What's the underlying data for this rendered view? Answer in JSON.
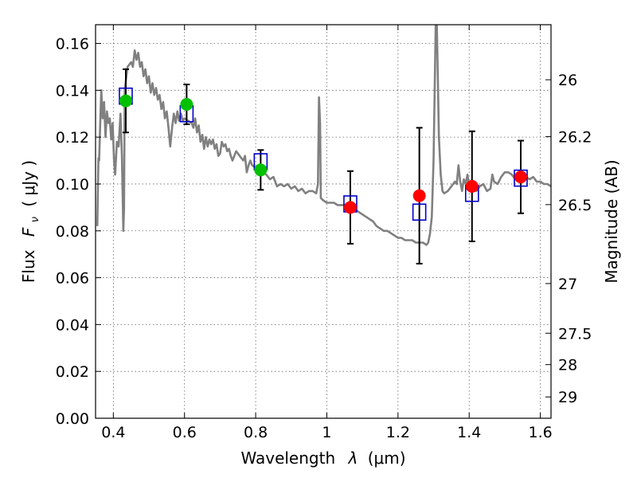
{
  "chart_data": {
    "type": "scatter",
    "xlabel_text": "Wavelength",
    "xlabel_symbol": "λ",
    "xlabel_unit": "(μm)",
    "ylabel_text": "Flux",
    "ylabel_symbol": "F",
    "ylabel_subscript": "ν",
    "ylabel_unit": "( μJy )",
    "y2label": "Magnitude (AB)",
    "xlim": [
      0.35,
      1.63
    ],
    "ylim": [
      0.0,
      0.168
    ],
    "x_ticks": [
      0.4,
      0.6,
      0.8,
      1.0,
      1.2,
      1.4,
      1.6
    ],
    "x_tick_labels": [
      "0.4",
      "0.6",
      "0.8",
      "1",
      "1.2",
      "1.4",
      "1.6"
    ],
    "y_ticks": [
      0.0,
      0.02,
      0.04,
      0.06,
      0.08,
      0.1,
      0.12,
      0.14,
      0.16
    ],
    "y_tick_labels": [
      "0.00",
      "0.02",
      "0.04",
      "0.06",
      "0.08",
      "0.10",
      "0.12",
      "0.14",
      "0.16"
    ],
    "y2_ticks": [
      {
        "label": "26",
        "flux": 0.1445
      },
      {
        "label": "26.2",
        "flux": 0.1202
      },
      {
        "label": "26.5",
        "flux": 0.0912
      },
      {
        "label": "27",
        "flux": 0.0575
      },
      {
        "label": "27.5",
        "flux": 0.0363
      },
      {
        "label": "28",
        "flux": 0.0229
      },
      {
        "label": "29",
        "flux": 0.0091
      }
    ],
    "grid": true,
    "colors": {
      "model": "#808080",
      "green": "#00c000",
      "red": "#ff0000",
      "box": "#0000cc",
      "errorbar": "#000000"
    },
    "series": [
      {
        "marker": "circle-green",
        "points": [
          {
            "x": 0.435,
            "y": 0.1355,
            "err": 0.0135
          },
          {
            "x": 0.606,
            "y": 0.134,
            "err": 0.0085
          },
          {
            "x": 0.814,
            "y": 0.106,
            "err": 0.0085
          }
        ]
      },
      {
        "marker": "circle-red",
        "points": [
          {
            "x": 1.066,
            "y": 0.09,
            "err": 0.0155
          },
          {
            "x": 1.26,
            "y": 0.095,
            "err": 0.029
          },
          {
            "x": 1.408,
            "y": 0.099,
            "err": 0.0235
          },
          {
            "x": 1.545,
            "y": 0.103,
            "err": 0.0155
          }
        ]
      },
      {
        "marker": "square-blue",
        "points": [
          {
            "x": 0.435,
            "y": 0.1375
          },
          {
            "x": 0.606,
            "y": 0.13
          },
          {
            "x": 0.814,
            "y": 0.1095
          },
          {
            "x": 1.066,
            "y": 0.0915
          },
          {
            "x": 1.26,
            "y": 0.088
          },
          {
            "x": 1.408,
            "y": 0.096
          },
          {
            "x": 1.545,
            "y": 0.1025
          }
        ]
      },
      {
        "marker": "line-gray",
        "points": [
          [
            0.355,
            0.082
          ],
          [
            0.358,
            0.111
          ],
          [
            0.36,
            0.11
          ],
          [
            0.363,
            0.125
          ],
          [
            0.366,
            0.14
          ],
          [
            0.37,
            0.128
          ],
          [
            0.374,
            0.135
          ],
          [
            0.378,
            0.12
          ],
          [
            0.382,
            0.131
          ],
          [
            0.386,
            0.126
          ],
          [
            0.39,
            0.128
          ],
          [
            0.394,
            0.119
          ],
          [
            0.398,
            0.126
          ],
          [
            0.402,
            0.11
          ],
          [
            0.405,
            0.104
          ],
          [
            0.41,
            0.118
          ],
          [
            0.415,
            0.116
          ],
          [
            0.42,
            0.13
          ],
          [
            0.424,
            0.112
          ],
          [
            0.428,
            0.08
          ],
          [
            0.43,
            0.09
          ],
          [
            0.432,
            0.14
          ],
          [
            0.44,
            0.15
          ],
          [
            0.45,
            0.152
          ],
          [
            0.455,
            0.15
          ],
          [
            0.46,
            0.157
          ],
          [
            0.465,
            0.153
          ],
          [
            0.47,
            0.156
          ],
          [
            0.475,
            0.15
          ],
          [
            0.48,
            0.152
          ],
          [
            0.485,
            0.146
          ],
          [
            0.49,
            0.149
          ],
          [
            0.495,
            0.143
          ],
          [
            0.5,
            0.146
          ],
          [
            0.505,
            0.139
          ],
          [
            0.51,
            0.143
          ],
          [
            0.515,
            0.138
          ],
          [
            0.52,
            0.141
          ],
          [
            0.525,
            0.136
          ],
          [
            0.53,
            0.138
          ],
          [
            0.535,
            0.132
          ],
          [
            0.54,
            0.135
          ],
          [
            0.545,
            0.128
          ],
          [
            0.55,
            0.131
          ],
          [
            0.555,
            0.124
          ],
          [
            0.56,
            0.116
          ],
          [
            0.565,
            0.124
          ],
          [
            0.57,
            0.13
          ],
          [
            0.575,
            0.126
          ],
          [
            0.58,
            0.131
          ],
          [
            0.585,
            0.127
          ],
          [
            0.59,
            0.13
          ],
          [
            0.595,
            0.127
          ],
          [
            0.6,
            0.128
          ],
          [
            0.61,
            0.127
          ],
          [
            0.62,
            0.126
          ],
          [
            0.625,
            0.124
          ],
          [
            0.63,
            0.128
          ],
          [
            0.635,
            0.122
          ],
          [
            0.64,
            0.125
          ],
          [
            0.645,
            0.118
          ],
          [
            0.65,
            0.121
          ],
          [
            0.655,
            0.115
          ],
          [
            0.66,
            0.12
          ],
          [
            0.665,
            0.116
          ],
          [
            0.67,
            0.119
          ],
          [
            0.675,
            0.117
          ],
          [
            0.68,
            0.119
          ],
          [
            0.685,
            0.115
          ],
          [
            0.69,
            0.117
          ],
          [
            0.695,
            0.112
          ],
          [
            0.7,
            0.113
          ],
          [
            0.705,
            0.118
          ],
          [
            0.71,
            0.116
          ],
          [
            0.715,
            0.117
          ],
          [
            0.72,
            0.114
          ],
          [
            0.725,
            0.115
          ],
          [
            0.73,
            0.112
          ],
          [
            0.735,
            0.11
          ],
          [
            0.74,
            0.112
          ],
          [
            0.745,
            0.114
          ],
          [
            0.75,
            0.113
          ],
          [
            0.755,
            0.112
          ],
          [
            0.76,
            0.111
          ],
          [
            0.765,
            0.11
          ],
          [
            0.77,
            0.112
          ],
          [
            0.775,
            0.105
          ],
          [
            0.78,
            0.108
          ],
          [
            0.785,
            0.11
          ],
          [
            0.79,
            0.108
          ],
          [
            0.8,
            0.107
          ],
          [
            0.81,
            0.107
          ],
          [
            0.82,
            0.105
          ],
          [
            0.83,
            0.104
          ],
          [
            0.84,
            0.102
          ],
          [
            0.85,
            0.103
          ],
          [
            0.86,
            0.099
          ],
          [
            0.87,
            0.1
          ],
          [
            0.88,
            0.099
          ],
          [
            0.89,
            0.1
          ],
          [
            0.9,
            0.098
          ],
          [
            0.91,
            0.099
          ],
          [
            0.92,
            0.097
          ],
          [
            0.93,
            0.098
          ],
          [
            0.94,
            0.096
          ],
          [
            0.95,
            0.097
          ],
          [
            0.96,
            0.097
          ],
          [
            0.97,
            0.096
          ],
          [
            0.975,
            0.1
          ],
          [
            0.978,
            0.137
          ],
          [
            0.981,
            0.126
          ],
          [
            0.983,
            0.094
          ],
          [
            0.99,
            0.093
          ],
          [
            1.0,
            0.092
          ],
          [
            1.01,
            0.092
          ],
          [
            1.02,
            0.092
          ],
          [
            1.03,
            0.091
          ],
          [
            1.04,
            0.091
          ],
          [
            1.05,
            0.091
          ],
          [
            1.06,
            0.09
          ],
          [
            1.07,
            0.089
          ],
          [
            1.08,
            0.089
          ],
          [
            1.09,
            0.088
          ],
          [
            1.1,
            0.087
          ],
          [
            1.11,
            0.086
          ],
          [
            1.12,
            0.085
          ],
          [
            1.13,
            0.084
          ],
          [
            1.14,
            0.082
          ],
          [
            1.15,
            0.081
          ],
          [
            1.16,
            0.08
          ],
          [
            1.17,
            0.08
          ],
          [
            1.18,
            0.079
          ],
          [
            1.19,
            0.078
          ],
          [
            1.2,
            0.077
          ],
          [
            1.21,
            0.077
          ],
          [
            1.22,
            0.076
          ],
          [
            1.23,
            0.076
          ],
          [
            1.24,
            0.076
          ],
          [
            1.25,
            0.075
          ],
          [
            1.26,
            0.075
          ],
          [
            1.27,
            0.075
          ],
          [
            1.28,
            0.074
          ],
          [
            1.285,
            0.075
          ],
          [
            1.29,
            0.079
          ],
          [
            1.295,
            0.086
          ],
          [
            1.3,
            0.11
          ],
          [
            1.303,
            0.14
          ],
          [
            1.306,
            0.168
          ],
          [
            1.309,
            0.168
          ],
          [
            1.312,
            0.145
          ],
          [
            1.315,
            0.12
          ],
          [
            1.32,
            0.104
          ],
          [
            1.325,
            0.097
          ],
          [
            1.33,
            0.096
          ],
          [
            1.34,
            0.097
          ],
          [
            1.35,
            0.099
          ],
          [
            1.36,
            0.101
          ],
          [
            1.365,
            0.1
          ],
          [
            1.37,
            0.108
          ],
          [
            1.375,
            0.101
          ],
          [
            1.38,
            0.097
          ],
          [
            1.385,
            0.102
          ],
          [
            1.39,
            0.1
          ],
          [
            1.395,
            0.104
          ],
          [
            1.4,
            0.099
          ],
          [
            1.41,
            0.098
          ],
          [
            1.42,
            0.097
          ],
          [
            1.43,
            0.099
          ],
          [
            1.44,
            0.1
          ],
          [
            1.45,
            0.097
          ],
          [
            1.46,
            0.098
          ],
          [
            1.465,
            0.104
          ],
          [
            1.47,
            0.101
          ],
          [
            1.48,
            0.1
          ],
          [
            1.49,
            0.103
          ],
          [
            1.5,
            0.105
          ],
          [
            1.51,
            0.105
          ],
          [
            1.52,
            0.104
          ],
          [
            1.53,
            0.102
          ],
          [
            1.54,
            0.101
          ],
          [
            1.545,
            0.103
          ],
          [
            1.55,
            0.104
          ],
          [
            1.56,
            0.103
          ],
          [
            1.57,
            0.102
          ],
          [
            1.58,
            0.103
          ],
          [
            1.59,
            0.101
          ],
          [
            1.6,
            0.101
          ],
          [
            1.61,
            0.1
          ],
          [
            1.62,
            0.1
          ],
          [
            1.63,
            0.099
          ]
        ]
      }
    ]
  }
}
